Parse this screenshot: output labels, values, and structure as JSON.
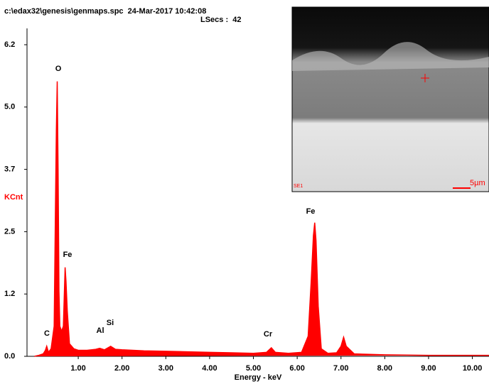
{
  "header": {
    "file": "c:\\edax32\\genesis\\genmaps.spc  24-Mar-2017 10:42:08",
    "lsecs": "LSecs :  42"
  },
  "image": {
    "label": "SE1",
    "scale": "5µm"
  },
  "chart_data": {
    "type": "spectrum",
    "color": "#ff0000",
    "xlabel": "Energy - keV",
    "ylabel": "KCnt",
    "x": [
      0.0,
      0.1,
      0.2,
      0.25,
      0.28,
      0.32,
      0.38,
      0.45,
      0.48,
      0.5,
      0.52,
      0.54,
      0.56,
      0.58,
      0.62,
      0.66,
      0.7,
      0.72,
      0.75,
      0.8,
      0.9,
      1.0,
      1.2,
      1.4,
      1.49,
      1.6,
      1.74,
      1.85,
      2.0,
      2.5,
      3.0,
      3.5,
      4.0,
      4.5,
      5.0,
      5.3,
      5.41,
      5.5,
      5.8,
      6.1,
      6.25,
      6.32,
      6.37,
      6.4,
      6.43,
      6.48,
      6.55,
      6.7,
      6.9,
      7.0,
      7.06,
      7.12,
      7.3,
      7.6,
      8.0,
      9.0,
      10.0,
      10.38
    ],
    "values": [
      0,
      0.02,
      0.05,
      0.12,
      0.2,
      0.08,
      0.15,
      0.6,
      3.0,
      4.5,
      5.47,
      3.7,
      1.3,
      0.6,
      0.5,
      0.6,
      1.77,
      1.5,
      0.9,
      0.25,
      0.15,
      0.12,
      0.12,
      0.14,
      0.16,
      0.13,
      0.2,
      0.14,
      0.13,
      0.11,
      0.1,
      0.09,
      0.08,
      0.07,
      0.06,
      0.08,
      0.17,
      0.08,
      0.06,
      0.08,
      0.4,
      1.5,
      2.4,
      2.66,
      2.3,
      1.0,
      0.15,
      0.06,
      0.07,
      0.2,
      0.38,
      0.2,
      0.05,
      0.04,
      0.03,
      0.02,
      0.02,
      0.02
    ],
    "xlim": [
      -0.17,
      10.38
    ],
    "ylim": [
      0,
      6.2
    ],
    "xticks": [
      {
        "value": 1,
        "label": "1.00"
      },
      {
        "value": 2,
        "label": "2.00"
      },
      {
        "value": 3,
        "label": "3.00"
      },
      {
        "value": 4,
        "label": "4.00"
      },
      {
        "value": 5,
        "label": "5.00"
      },
      {
        "value": 6,
        "label": "6.00"
      },
      {
        "value": 7,
        "label": "7.00"
      },
      {
        "value": 8,
        "label": "8.00"
      },
      {
        "value": 9,
        "label": "9.00"
      },
      {
        "value": 10,
        "label": "10.00"
      }
    ],
    "yticks": [
      {
        "value": 0,
        "label": "0.0"
      },
      {
        "value": 1.24,
        "label": "1.2"
      },
      {
        "value": 2.48,
        "label": "2.5"
      },
      {
        "value": 3.72,
        "label": "3.7"
      },
      {
        "value": 4.96,
        "label": "5.0"
      },
      6.2
    ],
    "annotations": [
      "O",
      "Fe",
      "C",
      "Al",
      "Si",
      "Cr",
      "Fe"
    ]
  }
}
